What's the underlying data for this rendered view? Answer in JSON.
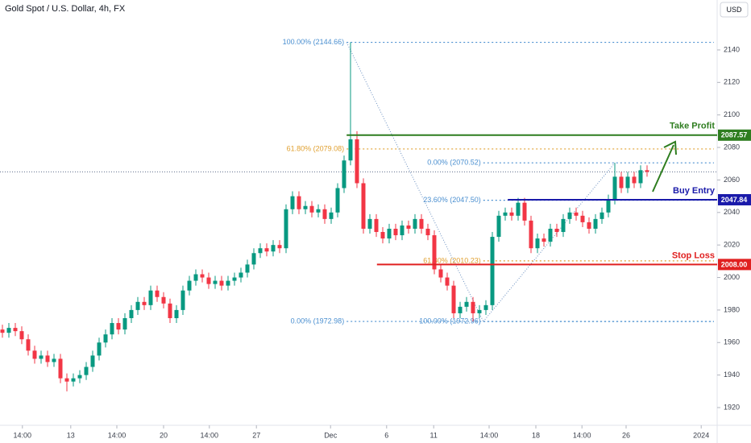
{
  "chart_data": {
    "type": "candlestick",
    "title": "Gold Spot / U.S. Dollar, 4h, FX",
    "currency": "USD",
    "up_color": "#089981",
    "down_color": "#f23645",
    "xlim": [
      -0.375,
      110.875
    ],
    "ylim": [
      1909.1,
      2170.7
    ],
    "yticks": [
      1920,
      1940,
      1960,
      1980,
      2000,
      2020,
      2040,
      2060,
      2080,
      2100,
      2120,
      2140
    ],
    "xticks": [
      {
        "value": 3.1,
        "label": "14:00"
      },
      {
        "value": 10.6,
        "label": "13"
      },
      {
        "value": 17.75,
        "label": "14:00"
      },
      {
        "value": 25,
        "label": "20"
      },
      {
        "value": 32.1,
        "label": "14:00"
      },
      {
        "value": 39.4,
        "label": "27"
      },
      {
        "value": 50.9,
        "label": "Dec"
      },
      {
        "value": 59.6,
        "label": "6"
      },
      {
        "value": 66.9,
        "label": "11"
      },
      {
        "value": 75.5,
        "label": "14:00"
      },
      {
        "value": 82.75,
        "label": "18"
      },
      {
        "value": 89.9,
        "label": "14:00"
      },
      {
        "value": 96.75,
        "label": "26"
      },
      {
        "value": 108.4,
        "label": "2024"
      }
    ],
    "ohlc": [
      [
        1968,
        1971,
        1963,
        1966
      ],
      [
        1966,
        1972,
        1963,
        1969
      ],
      [
        1969,
        1972,
        1964,
        1967
      ],
      [
        1967,
        1970,
        1959,
        1962
      ],
      [
        1962,
        1965,
        1952,
        1955
      ],
      [
        1955,
        1958,
        1947,
        1950
      ],
      [
        1950,
        1955,
        1947,
        1952
      ],
      [
        1952,
        1955,
        1945,
        1948
      ],
      [
        1948,
        1953,
        1945,
        1950
      ],
      [
        1950,
        1953,
        1935,
        1938
      ],
      [
        1938,
        1941,
        1930,
        1936
      ],
      [
        1936,
        1941,
        1933,
        1938
      ],
      [
        1938,
        1943,
        1935,
        1940
      ],
      [
        1940,
        1948,
        1937,
        1945
      ],
      [
        1945,
        1955,
        1942,
        1952
      ],
      [
        1952,
        1963,
        1949,
        1960
      ],
      [
        1960,
        1968,
        1957,
        1965
      ],
      [
        1965,
        1975,
        1962,
        1972
      ],
      [
        1972,
        1975,
        1965,
        1968
      ],
      [
        1968,
        1978,
        1965,
        1975
      ],
      [
        1975,
        1983,
        1972,
        1980
      ],
      [
        1980,
        1988,
        1977,
        1985
      ],
      [
        1985,
        1988,
        1980,
        1983
      ],
      [
        1983,
        1995,
        1980,
        1992
      ],
      [
        1992,
        1995,
        1985,
        1988
      ],
      [
        1988,
        1991,
        1981,
        1984
      ],
      [
        1984,
        1987,
        1972,
        1975
      ],
      [
        1975,
        1983,
        1972,
        1980
      ],
      [
        1980,
        1995,
        1977,
        1992
      ],
      [
        1992,
        2001,
        1989,
        1998
      ],
      [
        1998,
        2005,
        1995,
        2002
      ],
      [
        2002,
        2005,
        1997,
        2000
      ],
      [
        2000,
        2003,
        1993,
        1996
      ],
      [
        1996,
        2001,
        1993,
        1998
      ],
      [
        1998,
        2001,
        1992,
        1995
      ],
      [
        1995,
        2001,
        1992,
        1998
      ],
      [
        1998,
        2003,
        1995,
        2000
      ],
      [
        2000,
        2006,
        1997,
        2003
      ],
      [
        2003,
        2011,
        2000,
        2008
      ],
      [
        2008,
        2018,
        2005,
        2015
      ],
      [
        2015,
        2021,
        2012,
        2018
      ],
      [
        2018,
        2021,
        2013,
        2016
      ],
      [
        2016,
        2023,
        2013,
        2020
      ],
      [
        2020,
        2023,
        2015,
        2018
      ],
      [
        2018,
        2045,
        2015,
        2042
      ],
      [
        2042,
        2053,
        2039,
        2050
      ],
      [
        2050,
        2053,
        2039,
        2042
      ],
      [
        2042,
        2047,
        2039,
        2044
      ],
      [
        2044,
        2047,
        2037,
        2040
      ],
      [
        2040,
        2045,
        2037,
        2042
      ],
      [
        2042,
        2045,
        2033,
        2036
      ],
      [
        2036,
        2043,
        2033,
        2040
      ],
      [
        2040,
        2058,
        2037,
        2055
      ],
      [
        2055,
        2075,
        2052,
        2072
      ],
      [
        2072,
        2144.66,
        2069,
        2085
      ],
      [
        2085,
        2090,
        2055,
        2058
      ],
      [
        2058,
        2061,
        2027,
        2030
      ],
      [
        2030,
        2039,
        2027,
        2036
      ],
      [
        2036,
        2039,
        2025,
        2028
      ],
      [
        2028,
        2031,
        2021,
        2024
      ],
      [
        2024,
        2033,
        2021,
        2030
      ],
      [
        2030,
        2033,
        2023,
        2026
      ],
      [
        2026,
        2035,
        2023,
        2032
      ],
      [
        2032,
        2035,
        2027,
        2030
      ],
      [
        2030,
        2039,
        2027,
        2036
      ],
      [
        2036,
        2039,
        2027,
        2030
      ],
      [
        2030,
        2033,
        2023,
        2026
      ],
      [
        2026,
        2029,
        2002,
        2005
      ],
      [
        2005,
        2008,
        1997,
        2000
      ],
      [
        2000,
        2003,
        1992,
        1995
      ],
      [
        1995,
        1998,
        1975,
        1978
      ],
      [
        1978,
        1985,
        1975,
        1982
      ],
      [
        1982,
        1988,
        1979,
        1985
      ],
      [
        1985,
        1988,
        1972.96,
        1978
      ],
      [
        1978,
        1983,
        1975,
        1980
      ],
      [
        1980,
        1986,
        1977,
        1983
      ],
      [
        1983,
        2028,
        1980,
        2025
      ],
      [
        2025,
        2041,
        2022,
        2038
      ],
      [
        2038,
        2043,
        2035,
        2040
      ],
      [
        2040,
        2043,
        2035,
        2038
      ],
      [
        2038,
        2049,
        2035,
        2046
      ],
      [
        2046,
        2049,
        2032,
        2035
      ],
      [
        2035,
        2038,
        2015,
        2018
      ],
      [
        2018,
        2027,
        2015,
        2024
      ],
      [
        2024,
        2027,
        2019,
        2022
      ],
      [
        2022,
        2033,
        2019,
        2030
      ],
      [
        2030,
        2033,
        2025,
        2028
      ],
      [
        2028,
        2039,
        2025,
        2036
      ],
      [
        2036,
        2043,
        2033,
        2040
      ],
      [
        2040,
        2043,
        2035,
        2038
      ],
      [
        2038,
        2041,
        2031,
        2034
      ],
      [
        2034,
        2037,
        2027,
        2030
      ],
      [
        2030,
        2039,
        2027,
        2036
      ],
      [
        2036,
        2043,
        2033,
        2040
      ],
      [
        2040,
        2051,
        2037,
        2048
      ],
      [
        2048,
        2070.52,
        2045,
        2062
      ],
      [
        2062,
        2065,
        2052,
        2055
      ],
      [
        2055,
        2065,
        2052,
        2062
      ],
      [
        2062,
        2065,
        2055,
        2058
      ],
      [
        2058,
        2069,
        2055,
        2066
      ],
      [
        2066,
        2069,
        2062,
        2065
      ]
    ],
    "fib_levels": [
      {
        "label": "100.00% (2144.66)",
        "value": 2144.66,
        "from": 53.4,
        "color": "#4a8fd0"
      },
      {
        "label": "61.80% (2079.08)",
        "value": 2079.08,
        "from": 53.4,
        "color": "#e0a030"
      },
      {
        "label": "0.00% (1972.98)",
        "value": 1972.98,
        "from": 53.4,
        "color": "#4a8fd0"
      },
      {
        "label": "0.00% (2070.52)",
        "value": 2070.52,
        "from": 74.6,
        "color": "#4a8fd0"
      },
      {
        "label": "23.60% (2047.50)",
        "value": 2047.5,
        "from": 74.6,
        "color": "#4a8fd0"
      },
      {
        "label": "61.80% (2010.23)",
        "value": 2010.23,
        "from": 74.6,
        "color": "#e0a030"
      },
      {
        "label": "100.00% (1972.96)",
        "value": 1972.96,
        "from": 74.6,
        "color": "#4a8fd0"
      }
    ],
    "trade_lines": [
      {
        "name": "Take Profit",
        "value": 2087.57,
        "tag": "2087.57",
        "from": 53.4,
        "color": "#2e7d1f"
      },
      {
        "name": "Buy Entry",
        "value": 2047.84,
        "tag": "2047.84",
        "from": 78.4,
        "color": "#1a1aaa"
      },
      {
        "name": "Stop Loss",
        "value": 2008.0,
        "tag": "2008.00",
        "from": 58.1,
        "color": "#e02020"
      }
    ]
  }
}
